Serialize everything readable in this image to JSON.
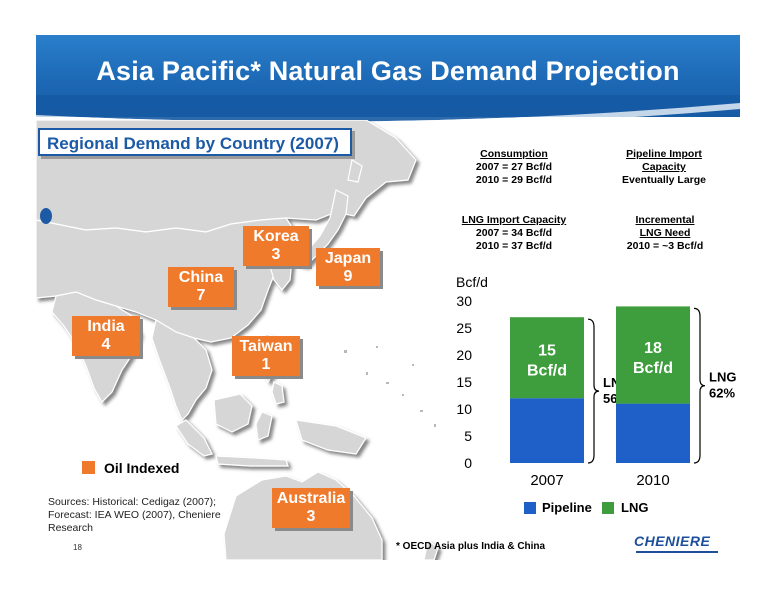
{
  "header": {
    "title": "Asia Pacific* Natural Gas Demand Projection"
  },
  "map": {
    "subtitle": "Regional Demand by Country (2007)",
    "countries": [
      {
        "name": "Korea",
        "value": "3"
      },
      {
        "name": "Japan",
        "value": "9"
      },
      {
        "name": "China",
        "value": "7"
      },
      {
        "name": "India",
        "value": "4"
      },
      {
        "name": "Taiwan",
        "value": "1"
      },
      {
        "name": "Australia",
        "value": "3"
      }
    ],
    "legend_label": "Oil Indexed",
    "legend_color": "#f07a2c"
  },
  "sources": {
    "line1": "Sources: Historical: Cedigaz (2007);",
    "line2": "Forecast: IEA WEO (2007), Cheniere",
    "line3": "Research"
  },
  "page_number": "18",
  "footnote": "* OECD Asia plus India & China",
  "info": {
    "consumption": {
      "heading": "Consumption",
      "line1": "2007 = 27 Bcf/d",
      "line2": "2010 = 29 Bcf/d"
    },
    "pipeline_import": {
      "heading1": "Pipeline Import",
      "heading2": "Capacity",
      "line1": "Eventually Large"
    },
    "lng_import": {
      "heading": "LNG Import Capacity",
      "line1": "2007 = 34 Bcf/d",
      "line2": "2010 = 37 Bcf/d"
    },
    "incremental": {
      "heading1": "Incremental",
      "heading2": "LNG Need",
      "line1": "2010 = ~3 Bcf/d"
    }
  },
  "logo": {
    "text": "CHENIERE"
  },
  "chart_data": {
    "type": "bar",
    "stacked": true,
    "ylabel": "Bcf/d",
    "ylim": [
      0,
      30
    ],
    "yticks": [
      "0",
      "5",
      "10",
      "15",
      "20",
      "25",
      "30"
    ],
    "categories": [
      "2007",
      "2010"
    ],
    "series": [
      {
        "name": "Pipeline",
        "values": [
          12,
          11
        ],
        "color": "#1f5fc8"
      },
      {
        "name": "LNG",
        "values": [
          15,
          18
        ],
        "color": "#3e9e3e"
      }
    ],
    "bar_labels": [
      {
        "line1": "15",
        "line2": "Bcf/d"
      },
      {
        "line1": "18",
        "line2": "Bcf/d"
      }
    ],
    "brace_labels": [
      {
        "line1": "LNG",
        "line2": "56%"
      },
      {
        "line1": "LNG",
        "line2": "62%"
      }
    ],
    "grid": false,
    "legend_position": "bottom"
  }
}
